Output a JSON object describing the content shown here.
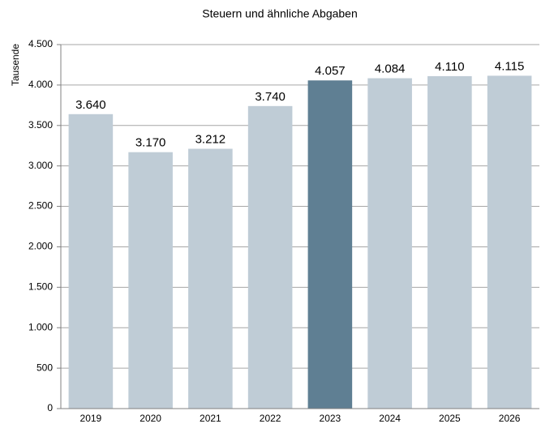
{
  "chart_data": {
    "type": "bar",
    "title": "Steuern und ähnliche Abgaben",
    "ylabel": "Tausende",
    "categories": [
      "2019",
      "2020",
      "2021",
      "2022",
      "2023",
      "2024",
      "2025",
      "2026"
    ],
    "values": [
      3640,
      3170,
      3212,
      3740,
      4057,
      4084,
      4110,
      4115
    ],
    "value_labels": [
      "3.640",
      "3.170",
      "3.212",
      "3.740",
      "4.057",
      "4.084",
      "4.110",
      "4.115"
    ],
    "colors": [
      "#bfccd6",
      "#bfccd6",
      "#bfccd6",
      "#bfccd6",
      "#5f7f93",
      "#bfccd6",
      "#bfccd6",
      "#bfccd6"
    ],
    "ylim": [
      0,
      4500
    ],
    "yticks": [
      0,
      500,
      {
        "value": 1000,
        "label": "1.000"
      },
      {
        "value": 1500,
        "label": "1.500"
      },
      {
        "value": 2000,
        "label": "2.000"
      },
      {
        "value": 2500,
        "label": "2.500"
      },
      {
        "value": 3000,
        "label": "3.000"
      },
      {
        "value": 3500,
        "label": "3.500"
      },
      {
        "value": 4000,
        "label": "4.000"
      },
      {
        "value": 4500,
        "label": "4.500"
      }
    ],
    "grid": true
  }
}
